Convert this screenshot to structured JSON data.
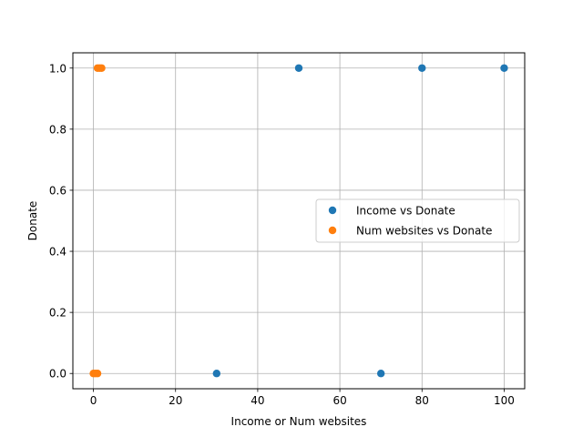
{
  "chart_data": {
    "type": "scatter",
    "title": "",
    "xlabel": "Income or Num websites",
    "ylabel": "Donate",
    "xlim": [
      -5,
      105
    ],
    "ylim": [
      -0.05,
      1.05
    ],
    "xticks": [
      0,
      20,
      40,
      60,
      80,
      100
    ],
    "yticks": [
      0.0,
      0.2,
      0.4,
      0.6,
      0.8,
      1.0
    ],
    "xtick_labels": [
      "0",
      "20",
      "40",
      "60",
      "80",
      "100"
    ],
    "ytick_labels": [
      "0.0",
      "0.2",
      "0.4",
      "0.6",
      "0.8",
      "1.0"
    ],
    "grid": true,
    "legend_position": "center-right",
    "series": [
      {
        "name": "Income vs Donate",
        "color": "#1f77b4",
        "points": [
          {
            "x": 30,
            "y": 0
          },
          {
            "x": 50,
            "y": 1
          },
          {
            "x": 70,
            "y": 0
          },
          {
            "x": 80,
            "y": 1
          },
          {
            "x": 100,
            "y": 1
          }
        ]
      },
      {
        "name": "Num websites vs Donate",
        "color": "#ff7f0e",
        "points": [
          {
            "x": 0,
            "y": 0
          },
          {
            "x": 1,
            "y": 0
          },
          {
            "x": 1,
            "y": 1
          },
          {
            "x": 2,
            "y": 1
          },
          {
            "x": 0.5,
            "y": 0
          },
          {
            "x": 1.5,
            "y": 1
          }
        ]
      }
    ]
  }
}
